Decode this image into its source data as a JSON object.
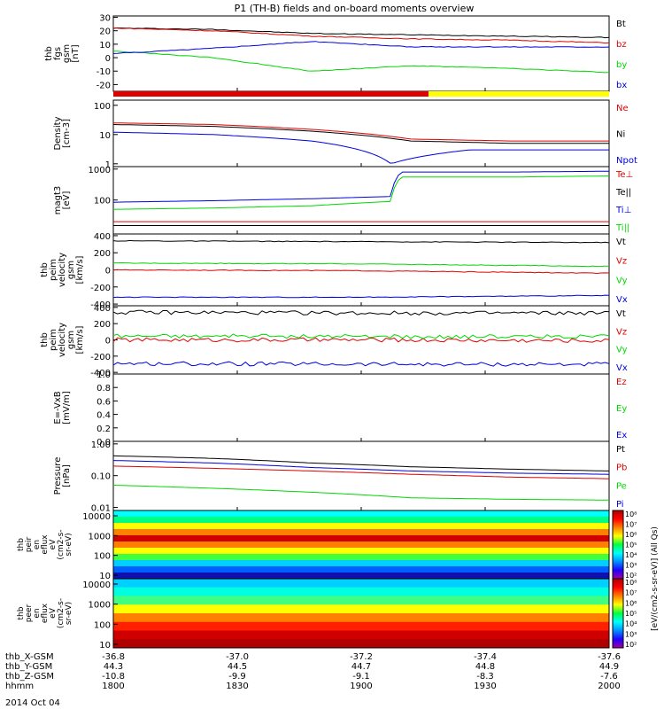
{
  "title": "P1 (TH-B) fields and on-board moments overview",
  "date_label": "2014 Oct 04",
  "ephemeris": {
    "rows": [
      {
        "label": "thb_X-GSM",
        "values": [
          "-36.8",
          "-37.0",
          "-37.2",
          "-37.4",
          "-37.6"
        ]
      },
      {
        "label": "thb_Y-GSM",
        "values": [
          "44.3",
          "44.5",
          "44.7",
          "44.8",
          "44.9"
        ]
      },
      {
        "label": "thb_Z-GSM",
        "values": [
          "-10.8",
          "-9.9",
          "-9.1",
          "-8.3",
          "-7.6"
        ]
      },
      {
        "label": "hhmm",
        "values": [
          "1800",
          "1830",
          "1900",
          "1930",
          "2000"
        ]
      }
    ]
  },
  "colorbar": {
    "label": "[eV/(cm2-s-sr-eV)] (All Qs)",
    "ion_ticks": [
      "10²",
      "10³",
      "10⁴",
      "10⁵",
      "10⁶",
      "10⁷",
      "10⁸"
    ],
    "elec_ticks": [
      "10²",
      "10³",
      "10⁴",
      "10⁵",
      "10⁶",
      "10⁷",
      "10⁸"
    ]
  },
  "colors": {
    "black": "#000000",
    "red": "#e00000",
    "green": "#00d800",
    "blue": "#0000e0",
    "yellow": "#ffff00"
  },
  "chart_data": [
    {
      "type": "line",
      "ylabel": [
        "thb",
        "fgs",
        "gsm",
        "[nT]"
      ],
      "yticks": [
        "30",
        "20",
        "10",
        "0",
        "-10",
        "-20"
      ],
      "ylim": [
        -25,
        31
      ],
      "series": [
        {
          "name": "Bt",
          "color": "#000000",
          "x": [
            0,
            0.2,
            0.4,
            0.6,
            0.8,
            1
          ],
          "y": [
            22,
            21,
            18,
            17,
            16,
            15
          ]
        },
        {
          "name": "bz",
          "color": "#e00000",
          "x": [
            0,
            0.2,
            0.4,
            0.6,
            0.8,
            1
          ],
          "y": [
            22,
            20,
            16,
            14,
            13,
            11
          ]
        },
        {
          "name": "by",
          "color": "#00d800",
          "x": [
            0,
            0.2,
            0.4,
            0.6,
            0.8,
            1
          ],
          "y": [
            5,
            0,
            -10,
            -6,
            -8,
            -11
          ]
        },
        {
          "name": "bx",
          "color": "#0000e0",
          "x": [
            0,
            0.2,
            0.4,
            0.6,
            0.8,
            1
          ],
          "y": [
            3,
            7,
            12,
            8,
            8,
            8
          ]
        }
      ]
    },
    {
      "type": "line",
      "ylabel": [
        "Density",
        "[cm-3]"
      ],
      "yticks": [
        "100",
        "10",
        "1"
      ],
      "scale": "log",
      "ylim": [
        0.8,
        150
      ],
      "series": [
        {
          "name": "Ne",
          "color": "#e00000",
          "x": [
            0,
            0.2,
            0.4,
            0.6,
            0.8,
            1
          ],
          "y": [
            25,
            22,
            15,
            7,
            6,
            6
          ]
        },
        {
          "name": "Ni",
          "color": "#000000",
          "x": [
            0,
            0.2,
            0.4,
            0.6,
            0.8,
            1
          ],
          "y": [
            22,
            19,
            13,
            6,
            5,
            5
          ]
        },
        {
          "name": "Npot",
          "color": "#0000e0",
          "x": [
            0,
            0.2,
            0.4,
            0.56,
            0.72,
            1
          ],
          "y": [
            12,
            10,
            6,
            1,
            3,
            3
          ]
        }
      ]
    },
    {
      "type": "line",
      "ylabel": [
        "magt3",
        "[eV]"
      ],
      "yticks": [
        "1000",
        "100"
      ],
      "scale": "log",
      "ylim": [
        8,
        1200
      ],
      "series": [
        {
          "name": "Te⊥",
          "color": "#e00000",
          "x": [
            0,
            0.5,
            1
          ],
          "y": [
            20,
            20,
            20
          ]
        },
        {
          "name": "Te||",
          "color": "#000000",
          "x": [
            0,
            0.5,
            1
          ],
          "y": [
            15,
            15,
            15
          ]
        },
        {
          "name": "Ti⊥",
          "color": "#0000e0",
          "x": [
            0,
            0.2,
            0.4,
            0.56,
            0.58,
            0.8,
            1
          ],
          "y": [
            85,
            95,
            110,
            130,
            800,
            800,
            850
          ]
        },
        {
          "name": "Ti||",
          "color": "#00d800",
          "x": [
            0,
            0.2,
            0.4,
            0.56,
            0.58,
            0.8,
            1
          ],
          "y": [
            50,
            55,
            65,
            90,
            550,
            550,
            600
          ]
        }
      ]
    },
    {
      "type": "line",
      "ylabel": [
        "thb",
        "peim",
        "velocity",
        "gsm",
        "[km/s]"
      ],
      "yticks": [
        "400",
        "200",
        "0",
        "-200",
        "-400"
      ],
      "ylim": [
        -420,
        420
      ],
      "series": [
        {
          "name": "Vt",
          "color": "#000000",
          "x": [
            0,
            0.5,
            1
          ],
          "y": [
            340,
            330,
            320
          ]
        },
        {
          "name": "Vz",
          "color": "#e00000",
          "x": [
            0,
            0.5,
            1
          ],
          "y": [
            0,
            -10,
            -40
          ]
        },
        {
          "name": "Vy",
          "color": "#00d800",
          "x": [
            0,
            0.5,
            1
          ],
          "y": [
            80,
            70,
            40
          ]
        },
        {
          "name": "Vx",
          "color": "#0000e0",
          "x": [
            0,
            0.5,
            1
          ],
          "y": [
            -320,
            -320,
            -300
          ]
        }
      ]
    },
    {
      "type": "line",
      "ylabel": [
        "thb",
        "peim",
        "velocity",
        "gsm",
        "[km/s]"
      ],
      "yticks": [
        "400",
        "200",
        "0",
        "-200",
        "-400"
      ],
      "ylim": [
        -420,
        420
      ],
      "series": [
        {
          "name": "Vt",
          "color": "#000000",
          "x": [
            0,
            0.5,
            1
          ],
          "y": [
            340,
            330,
            330
          ]
        },
        {
          "name": "Vz",
          "color": "#e00000",
          "x": [
            0,
            0.5,
            1
          ],
          "y": [
            0,
            0,
            -10
          ]
        },
        {
          "name": "Vy",
          "color": "#00d800",
          "x": [
            0,
            0.5,
            1
          ],
          "y": [
            50,
            40,
            40
          ]
        },
        {
          "name": "Vx",
          "color": "#0000e0",
          "x": [
            0,
            0.5,
            1
          ],
          "y": [
            -290,
            -300,
            -300
          ]
        }
      ]
    },
    {
      "type": "line",
      "ylabel": [
        "E=-VxB",
        "[mV/m]"
      ],
      "yticks": [
        "1.0",
        "0.8",
        "0.6",
        "0.4",
        "0.2",
        "0.0"
      ],
      "ylim": [
        0,
        1
      ],
      "series": [
        {
          "name": "Ez",
          "color": "#e00000",
          "x": [],
          "y": []
        },
        {
          "name": "Ey",
          "color": "#00d800",
          "x": [],
          "y": []
        },
        {
          "name": "Ex",
          "color": "#0000e0",
          "x": [],
          "y": []
        }
      ]
    },
    {
      "type": "line",
      "ylabel": [
        "Pressure",
        "[nPa]"
      ],
      "yticks": [
        "1.00",
        "0.10",
        "0.01"
      ],
      "scale": "log",
      "ylim": [
        0.008,
        1.2
      ],
      "series": [
        {
          "name": "Pt",
          "color": "#000000",
          "x": [
            0,
            0.2,
            0.4,
            0.6,
            0.8,
            1
          ],
          "y": [
            0.42,
            0.35,
            0.25,
            0.19,
            0.16,
            0.14
          ]
        },
        {
          "name": "Pb",
          "color": "#e00000",
          "x": [
            0,
            0.2,
            0.4,
            0.6,
            0.8,
            1
          ],
          "y": [
            0.2,
            0.17,
            0.14,
            0.11,
            0.09,
            0.08
          ]
        },
        {
          "name": "Pe",
          "color": "#00d800",
          "x": [
            0,
            0.2,
            0.4,
            0.6,
            0.8,
            1
          ],
          "y": [
            0.05,
            0.04,
            0.03,
            0.02,
            0.018,
            0.017
          ]
        },
        {
          "name": "Pi",
          "color": "#0000e0",
          "x": [
            0,
            0.2,
            0.4,
            0.6,
            0.8,
            1
          ],
          "y": [
            0.3,
            0.25,
            0.18,
            0.14,
            0.12,
            0.11
          ]
        }
      ]
    },
    {
      "type": "heatmap",
      "ylabel": [
        "thb",
        "peir",
        "en",
        "eflux",
        "eV",
        "(cm2-s-",
        "sr-eV)"
      ],
      "yticks": [
        "10000",
        "1000",
        "100",
        "10"
      ]
    },
    {
      "type": "heatmap",
      "ylabel": [
        "thb",
        "peer",
        "en",
        "eflux",
        "eV",
        "(cm2-s-",
        "sr-eV)"
      ],
      "yticks": [
        "10000",
        "1000",
        "100",
        "10"
      ]
    }
  ]
}
